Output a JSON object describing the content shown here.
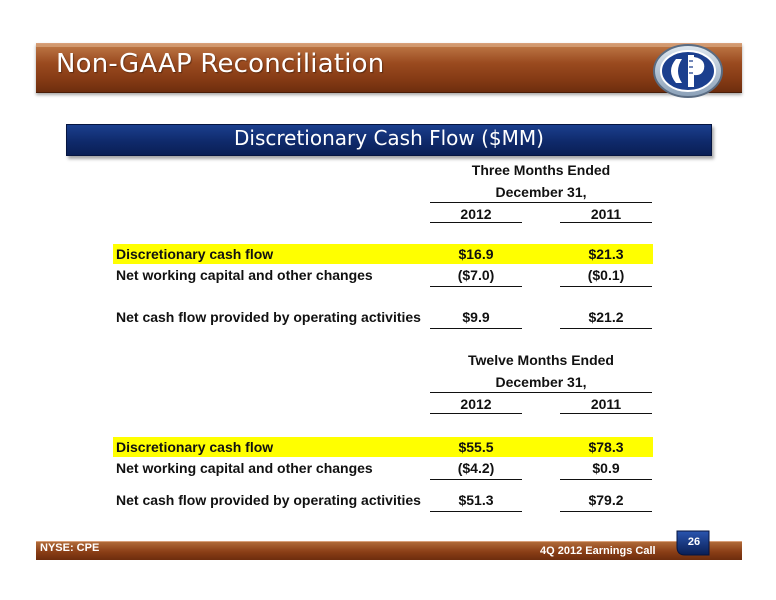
{
  "header": {
    "title": "Non-GAAP Reconciliation",
    "logo_icon": "company-logo-icon"
  },
  "section": {
    "title": "Discretionary Cash Flow ($MM)"
  },
  "three_months": {
    "heading_line1": "Three Months Ended",
    "heading_line2": "December 31,",
    "col1": "2012",
    "col2": "2011",
    "rows": [
      {
        "label": "Discretionary cash flow",
        "v2012": "$16.9",
        "v2011": "$21.3"
      },
      {
        "label": "Net working capital and other changes",
        "v2012": "($7.0)",
        "v2011": "($0.1)"
      },
      {
        "label": "Net cash flow provided by operating activities",
        "v2012": "$9.9",
        "v2011": "$21.2"
      }
    ]
  },
  "twelve_months": {
    "heading_line1": "Twelve Months Ended",
    "heading_line2": "December 31,",
    "col1": "2012",
    "col2": "2011",
    "rows": [
      {
        "label": "Discretionary cash flow",
        "v2012": "$55.5",
        "v2011": "$78.3"
      },
      {
        "label": "Net working capital and other changes",
        "v2012": "($4.2)",
        "v2011": "$0.9"
      },
      {
        "label": "Net cash flow provided by operating activities",
        "v2012": "$51.3",
        "v2011": "$79.2"
      }
    ]
  },
  "footer": {
    "ticker": "NYSE: CPE",
    "event": "4Q 2012 Earnings Call",
    "page_number": "26"
  },
  "colors": {
    "header_brown": "#8a3e16",
    "banner_blue": "#0f2a6b",
    "highlight": "#ffff00"
  }
}
